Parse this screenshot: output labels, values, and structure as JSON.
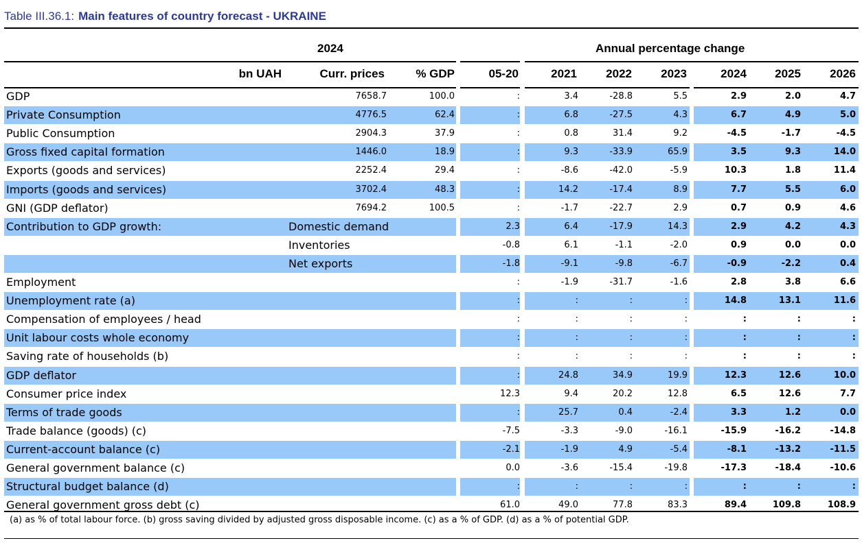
{
  "title": {
    "prefix": "Table III.36.1:",
    "main": "Main features of country forecast - UKRAINE"
  },
  "header": {
    "year_group": "2024",
    "change_group": "Annual percentage change",
    "columns": [
      "bn UAH",
      "Curr. prices",
      "% GDP",
      "05-20",
      "2021",
      "2022",
      "2023",
      "2024",
      "2025",
      "2026"
    ]
  },
  "rows": [
    {
      "label": "GDP",
      "sub": "",
      "curr": "7658.7",
      "pct": "100.0",
      "c0520": ":",
      "y2021": "3.4",
      "y2022": "-28.8",
      "y2023": "5.5",
      "y2024": "2.9",
      "y2025": "2.0",
      "y2026": "4.7"
    },
    {
      "label": "Private Consumption",
      "sub": "",
      "curr": "4776.5",
      "pct": "62.4",
      "c0520": ":",
      "y2021": "6.8",
      "y2022": "-27.5",
      "y2023": "4.3",
      "y2024": "6.7",
      "y2025": "4.9",
      "y2026": "5.0"
    },
    {
      "label": "Public Consumption",
      "sub": "",
      "curr": "2904.3",
      "pct": "37.9",
      "c0520": ":",
      "y2021": "0.8",
      "y2022": "31.4",
      "y2023": "9.2",
      "y2024": "-4.5",
      "y2025": "-1.7",
      "y2026": "-4.5"
    },
    {
      "label": "Gross fixed capital formation",
      "sub": "",
      "curr": "1446.0",
      "pct": "18.9",
      "c0520": ":",
      "y2021": "9.3",
      "y2022": "-33.9",
      "y2023": "65.9",
      "y2024": "3.5",
      "y2025": "9.3",
      "y2026": "14.0"
    },
    {
      "label": "Exports (goods and services)",
      "sub": "",
      "curr": "2252.4",
      "pct": "29.4",
      "c0520": ":",
      "y2021": "-8.6",
      "y2022": "-42.0",
      "y2023": "-5.9",
      "y2024": "10.3",
      "y2025": "1.8",
      "y2026": "11.4"
    },
    {
      "label": "Imports (goods and services)",
      "sub": "",
      "curr": "3702.4",
      "pct": "48.3",
      "c0520": ":",
      "y2021": "14.2",
      "y2022": "-17.4",
      "y2023": "8.9",
      "y2024": "7.7",
      "y2025": "5.5",
      "y2026": "6.0"
    },
    {
      "label": "GNI (GDP deflator)",
      "sub": "",
      "curr": "7694.2",
      "pct": "100.5",
      "c0520": ":",
      "y2021": "-1.7",
      "y2022": "-22.7",
      "y2023": "2.9",
      "y2024": "0.7",
      "y2025": "0.9",
      "y2026": "4.6"
    },
    {
      "label": "Contribution to GDP growth:",
      "sub": "Domestic demand",
      "curr": "",
      "pct": "",
      "c0520": "2.3",
      "y2021": "6.4",
      "y2022": "-17.9",
      "y2023": "14.3",
      "y2024": "2.9",
      "y2025": "4.2",
      "y2026": "4.3"
    },
    {
      "label": "",
      "sub": "Inventories",
      "curr": "",
      "pct": "",
      "c0520": "-0.8",
      "y2021": "6.1",
      "y2022": "-1.1",
      "y2023": "-2.0",
      "y2024": "0.9",
      "y2025": "0.0",
      "y2026": "0.0"
    },
    {
      "label": "",
      "sub": "Net exports",
      "curr": "",
      "pct": "",
      "c0520": "-1.8",
      "y2021": "-9.1",
      "y2022": "-9.8",
      "y2023": "-6.7",
      "y2024": "-0.9",
      "y2025": "-2.2",
      "y2026": "0.4"
    },
    {
      "label": "Employment",
      "sub": "",
      "curr": "",
      "pct": "",
      "c0520": ":",
      "y2021": "-1.9",
      "y2022": "-31.7",
      "y2023": "-1.6",
      "y2024": "2.8",
      "y2025": "3.8",
      "y2026": "6.6"
    },
    {
      "label": "Unemployment rate (a)",
      "sub": "",
      "curr": "",
      "pct": "",
      "c0520": ":",
      "y2021": ":",
      "y2022": ":",
      "y2023": ":",
      "y2024": "14.8",
      "y2025": "13.1",
      "y2026": "11.6"
    },
    {
      "label": "Compensation of employees / head",
      "sub": "",
      "curr": "",
      "pct": "",
      "c0520": ":",
      "y2021": ":",
      "y2022": ":",
      "y2023": ":",
      "y2024": ":",
      "y2025": ":",
      "y2026": ":"
    },
    {
      "label": "Unit labour costs whole economy",
      "sub": "",
      "curr": "",
      "pct": "",
      "c0520": ":",
      "y2021": ":",
      "y2022": ":",
      "y2023": ":",
      "y2024": ":",
      "y2025": ":",
      "y2026": ":"
    },
    {
      "label": "Saving rate of households (b)",
      "sub": "",
      "curr": "",
      "pct": "",
      "c0520": ":",
      "y2021": ":",
      "y2022": ":",
      "y2023": ":",
      "y2024": ":",
      "y2025": ":",
      "y2026": ":"
    },
    {
      "label": "GDP deflator",
      "sub": "",
      "curr": "",
      "pct": "",
      "c0520": ":",
      "y2021": "24.8",
      "y2022": "34.9",
      "y2023": "19.9",
      "y2024": "12.3",
      "y2025": "12.6",
      "y2026": "10.0"
    },
    {
      "label": "Consumer price index",
      "sub": "",
      "curr": "",
      "pct": "",
      "c0520": "12.3",
      "y2021": "9.4",
      "y2022": "20.2",
      "y2023": "12.8",
      "y2024": "6.5",
      "y2025": "12.6",
      "y2026": "7.7"
    },
    {
      "label": "Terms of trade goods",
      "sub": "",
      "curr": "",
      "pct": "",
      "c0520": ":",
      "y2021": "25.7",
      "y2022": "0.4",
      "y2023": "-2.4",
      "y2024": "3.3",
      "y2025": "1.2",
      "y2026": "0.0"
    },
    {
      "label": "Trade balance (goods) (c)",
      "sub": "",
      "curr": "",
      "pct": "",
      "c0520": "-7.5",
      "y2021": "-3.3",
      "y2022": "-9.0",
      "y2023": "-16.1",
      "y2024": "-15.9",
      "y2025": "-16.2",
      "y2026": "-14.8"
    },
    {
      "label": "Current-account balance (c)",
      "sub": "",
      "curr": "",
      "pct": "",
      "c0520": "-2.1",
      "y2021": "-1.9",
      "y2022": "4.9",
      "y2023": "-5.4",
      "y2024": "-8.1",
      "y2025": "-13.2",
      "y2026": "-11.5"
    },
    {
      "label": "General government balance (c)",
      "sub": "",
      "curr": "",
      "pct": "",
      "c0520": "0.0",
      "y2021": "-3.6",
      "y2022": "-15.4",
      "y2023": "-19.8",
      "y2024": "-17.3",
      "y2025": "-18.4",
      "y2026": "-10.6"
    },
    {
      "label": "Structural budget balance (d)",
      "sub": "",
      "curr": "",
      "pct": "",
      "c0520": ":",
      "y2021": ":",
      "y2022": ":",
      "y2023": ":",
      "y2024": ":",
      "y2025": ":",
      "y2026": ":"
    },
    {
      "label": "General government gross debt (c)",
      "sub": "",
      "curr": "",
      "pct": "",
      "c0520": "61.0",
      "y2021": "49.0",
      "y2022": "77.8",
      "y2023": "83.3",
      "y2024": "89.4",
      "y2025": "109.8",
      "y2026": "108.9"
    }
  ],
  "footnote": "(a) as % of total labour force. (b) gross saving divided by adjusted gross disposable income.  (c) as a % of GDP. (d) as a % of potential GDP.",
  "colors": {
    "title": "#2b3a9a",
    "row_shade": "#99c9f9"
  }
}
